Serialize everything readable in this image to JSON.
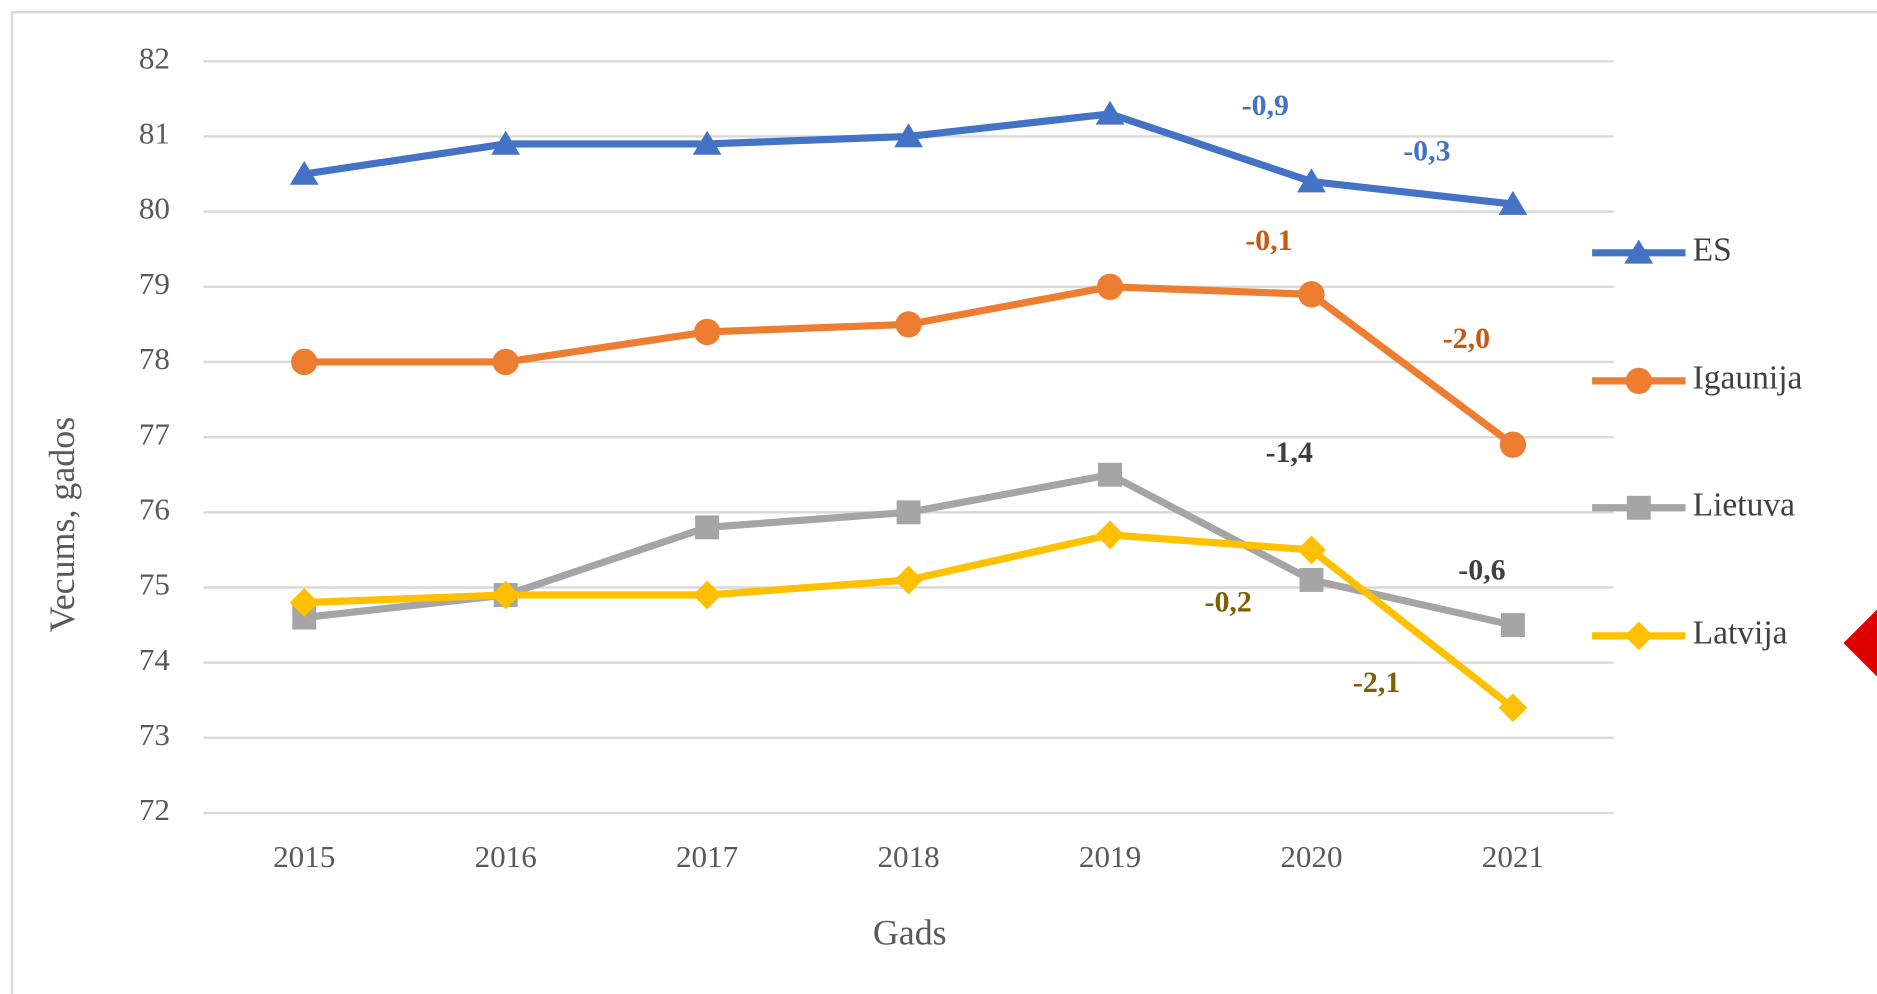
{
  "chart_data": {
    "type": "line",
    "x_label": "Gads",
    "y_label": "Vecums, gados",
    "categories": [
      "2015",
      "2016",
      "2017",
      "2018",
      "2019",
      "2020",
      "2021"
    ],
    "series": [
      {
        "name": "ES",
        "color": "#4472c4",
        "marker": "triangle",
        "values": [
          80.5,
          80.9,
          80.9,
          81.0,
          81.3,
          80.4,
          80.1
        ]
      },
      {
        "name": "Igaunija",
        "color": "#ed7d31",
        "marker": "circle",
        "values": [
          78,
          78,
          78.4,
          78.5,
          79.0,
          78.9,
          76.9
        ]
      },
      {
        "name": "Lietuva",
        "color": "#a5a5a5",
        "marker": "square",
        "values": [
          74.6,
          74.9,
          75.8,
          76.0,
          76.5,
          75.1,
          74.5
        ]
      },
      {
        "name": "Latvija",
        "color": "#ffc000",
        "marker": "diamond",
        "values": [
          74.8,
          74.9,
          74.9,
          75.1,
          75.7,
          75.5,
          73.4
        ]
      }
    ],
    "annotations": [
      {
        "text": "-0,9",
        "color": "#4472c4"
      },
      {
        "text": "-0,3",
        "color": "#4472c4"
      },
      {
        "text": "-0,1",
        "color": "#c55a11"
      },
      {
        "text": "-2,0",
        "color": "#c55a11"
      },
      {
        "text": "-1,4",
        "color": "#404040"
      },
      {
        "text": "-0,6",
        "color": "#404040"
      },
      {
        "text": "-0,2",
        "color": "#7f6000"
      },
      {
        "text": "-2,1",
        "color": "#7f6000"
      }
    ],
    "ylim": [
      72,
      82
    ],
    "yticks": [
      72,
      73,
      74,
      75,
      76,
      77,
      78,
      79,
      80,
      81,
      82
    ],
    "grid": true
  }
}
